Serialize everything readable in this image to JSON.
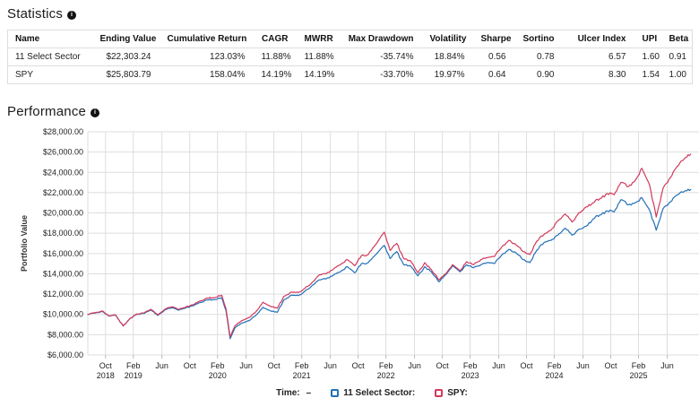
{
  "statistics": {
    "title": "Statistics",
    "columns": [
      "Name",
      "Ending Value",
      "Cumulative Return",
      "CAGR",
      "MWRR",
      "Max Drawdown",
      "Volatility",
      "Sharpe",
      "Sortino",
      "Ulcer Index",
      "UPI",
      "Beta"
    ],
    "rows": [
      [
        "11 Select Sector",
        "$22,303.24",
        "123.03%",
        "11.88%",
        "11.88%",
        "-35.74%",
        "18.84%",
        "0.56",
        "0.78",
        "6.57",
        "1.60",
        "0.91"
      ],
      [
        "SPY",
        "$25,803.79",
        "158.04%",
        "14.19%",
        "14.19%",
        "-33.70%",
        "19.97%",
        "0.64",
        "0.90",
        "8.30",
        "1.54",
        "1.00"
      ]
    ]
  },
  "performance": {
    "title": "Performance",
    "legend": {
      "time_label": "Time:",
      "time_value": "–",
      "items": [
        {
          "label": "11 Select Sector:"
        },
        {
          "label": "SPY:"
        }
      ]
    }
  },
  "chart_data": {
    "type": "line",
    "title": "Performance",
    "xlabel": "",
    "ylabel": "Portfolio Value",
    "ylim": [
      6000,
      28000
    ],
    "ytick_step": 2000,
    "ytick_prefix": "$",
    "xlim": [
      2018.54,
      2025.83
    ],
    "grid": true,
    "legend_position": "bottom",
    "grid_color": "#dddddd",
    "x_ticks": [
      {
        "t": 2018.75,
        "month": "Oct",
        "year": "2018"
      },
      {
        "t": 2019.08,
        "month": "Feb",
        "year": "2019"
      },
      {
        "t": 2019.42,
        "month": "Jun"
      },
      {
        "t": 2019.75,
        "month": "Oct"
      },
      {
        "t": 2020.08,
        "month": "Feb",
        "year": "2020"
      },
      {
        "t": 2020.42,
        "month": "Jun"
      },
      {
        "t": 2020.75,
        "month": "Oct"
      },
      {
        "t": 2021.08,
        "month": "Feb",
        "year": "2021"
      },
      {
        "t": 2021.42,
        "month": "Jun"
      },
      {
        "t": 2021.75,
        "month": "Oct"
      },
      {
        "t": 2022.08,
        "month": "Feb",
        "year": "2022"
      },
      {
        "t": 2022.42,
        "month": "Jun"
      },
      {
        "t": 2022.75,
        "month": "Oct"
      },
      {
        "t": 2023.08,
        "month": "Feb",
        "year": "2023"
      },
      {
        "t": 2023.42,
        "month": "Jun"
      },
      {
        "t": 2023.75,
        "month": "Oct"
      },
      {
        "t": 2024.08,
        "month": "Feb",
        "year": "2024"
      },
      {
        "t": 2024.42,
        "month": "Jun"
      },
      {
        "t": 2024.75,
        "month": "Oct"
      },
      {
        "t": 2025.08,
        "month": "Feb",
        "year": "2025"
      },
      {
        "t": 2025.42,
        "month": "Jun"
      }
    ],
    "series": [
      {
        "name": "11 Select Sector",
        "color": "#2170b8",
        "points": [
          [
            2018.54,
            10000
          ],
          [
            2018.62,
            10120
          ],
          [
            2018.71,
            10300
          ],
          [
            2018.79,
            9830
          ],
          [
            2018.87,
            9920
          ],
          [
            2018.96,
            8870
          ],
          [
            2019.04,
            9580
          ],
          [
            2019.12,
            10020
          ],
          [
            2019.21,
            10100
          ],
          [
            2019.29,
            10430
          ],
          [
            2019.37,
            9900
          ],
          [
            2019.46,
            10480
          ],
          [
            2019.54,
            10650
          ],
          [
            2019.62,
            10420
          ],
          [
            2019.71,
            10680
          ],
          [
            2019.79,
            10850
          ],
          [
            2019.87,
            11150
          ],
          [
            2019.96,
            11420
          ],
          [
            2020.04,
            11450
          ],
          [
            2020.13,
            11650
          ],
          [
            2020.18,
            10400
          ],
          [
            2020.23,
            7600
          ],
          [
            2020.29,
            8700
          ],
          [
            2020.37,
            9150
          ],
          [
            2020.46,
            9400
          ],
          [
            2020.54,
            9950
          ],
          [
            2020.62,
            10700
          ],
          [
            2020.71,
            10350
          ],
          [
            2020.79,
            10200
          ],
          [
            2020.87,
            11450
          ],
          [
            2020.96,
            11900
          ],
          [
            2021.04,
            11850
          ],
          [
            2021.12,
            12300
          ],
          [
            2021.21,
            12900
          ],
          [
            2021.29,
            13400
          ],
          [
            2021.37,
            13500
          ],
          [
            2021.46,
            13900
          ],
          [
            2021.54,
            14200
          ],
          [
            2021.62,
            14700
          ],
          [
            2021.71,
            14100
          ],
          [
            2021.79,
            15000
          ],
          [
            2021.87,
            15100
          ],
          [
            2021.96,
            15900
          ],
          [
            2022.06,
            16800
          ],
          [
            2022.13,
            15500
          ],
          [
            2022.21,
            16200
          ],
          [
            2022.29,
            14900
          ],
          [
            2022.37,
            14800
          ],
          [
            2022.46,
            13800
          ],
          [
            2022.54,
            14700
          ],
          [
            2022.62,
            14200
          ],
          [
            2022.71,
            13200
          ],
          [
            2022.79,
            13900
          ],
          [
            2022.87,
            14800
          ],
          [
            2022.96,
            14200
          ],
          [
            2023.04,
            14900
          ],
          [
            2023.12,
            14600
          ],
          [
            2023.21,
            14900
          ],
          [
            2023.29,
            15100
          ],
          [
            2023.37,
            15000
          ],
          [
            2023.46,
            15900
          ],
          [
            2023.54,
            16400
          ],
          [
            2023.62,
            16100
          ],
          [
            2023.71,
            15400
          ],
          [
            2023.79,
            15100
          ],
          [
            2023.87,
            16300
          ],
          [
            2023.96,
            17100
          ],
          [
            2024.04,
            17300
          ],
          [
            2024.12,
            17800
          ],
          [
            2024.21,
            18500
          ],
          [
            2024.29,
            17800
          ],
          [
            2024.37,
            18400
          ],
          [
            2024.46,
            18700
          ],
          [
            2024.54,
            19400
          ],
          [
            2024.62,
            19800
          ],
          [
            2024.71,
            20200
          ],
          [
            2024.79,
            20100
          ],
          [
            2024.87,
            21300
          ],
          [
            2024.96,
            20800
          ],
          [
            2025.04,
            21000
          ],
          [
            2025.12,
            21500
          ],
          [
            2025.21,
            20300
          ],
          [
            2025.29,
            18300
          ],
          [
            2025.37,
            20400
          ],
          [
            2025.46,
            21100
          ],
          [
            2025.54,
            21800
          ],
          [
            2025.62,
            22100
          ],
          [
            2025.7,
            22303.24
          ]
        ]
      },
      {
        "name": "SPY",
        "color": "#d13a5c",
        "points": [
          [
            2018.54,
            10000
          ],
          [
            2018.62,
            10150
          ],
          [
            2018.71,
            10350
          ],
          [
            2018.79,
            9850
          ],
          [
            2018.87,
            9950
          ],
          [
            2018.96,
            8850
          ],
          [
            2019.04,
            9600
          ],
          [
            2019.12,
            10050
          ],
          [
            2019.21,
            10150
          ],
          [
            2019.29,
            10500
          ],
          [
            2019.37,
            9950
          ],
          [
            2019.46,
            10550
          ],
          [
            2019.54,
            10750
          ],
          [
            2019.62,
            10500
          ],
          [
            2019.71,
            10750
          ],
          [
            2019.79,
            10950
          ],
          [
            2019.87,
            11300
          ],
          [
            2019.96,
            11600
          ],
          [
            2020.04,
            11650
          ],
          [
            2020.13,
            11900
          ],
          [
            2020.18,
            10600
          ],
          [
            2020.23,
            7800
          ],
          [
            2020.29,
            8900
          ],
          [
            2020.37,
            9400
          ],
          [
            2020.46,
            9700
          ],
          [
            2020.54,
            10300
          ],
          [
            2020.62,
            11200
          ],
          [
            2020.71,
            10800
          ],
          [
            2020.79,
            10600
          ],
          [
            2020.87,
            11800
          ],
          [
            2020.96,
            12200
          ],
          [
            2021.04,
            12150
          ],
          [
            2021.12,
            12600
          ],
          [
            2021.21,
            13200
          ],
          [
            2021.29,
            13900
          ],
          [
            2021.37,
            14000
          ],
          [
            2021.46,
            14500
          ],
          [
            2021.54,
            14900
          ],
          [
            2021.62,
            15400
          ],
          [
            2021.71,
            14800
          ],
          [
            2021.79,
            15800
          ],
          [
            2021.87,
            15900
          ],
          [
            2021.96,
            16900
          ],
          [
            2022.06,
            18100
          ],
          [
            2022.13,
            16300
          ],
          [
            2022.21,
            17000
          ],
          [
            2022.29,
            15500
          ],
          [
            2022.37,
            15300
          ],
          [
            2022.46,
            14100
          ],
          [
            2022.54,
            15100
          ],
          [
            2022.62,
            14400
          ],
          [
            2022.71,
            13400
          ],
          [
            2022.79,
            14000
          ],
          [
            2022.87,
            14900
          ],
          [
            2022.96,
            14300
          ],
          [
            2023.04,
            15200
          ],
          [
            2023.12,
            14900
          ],
          [
            2023.21,
            15400
          ],
          [
            2023.29,
            15600
          ],
          [
            2023.37,
            15700
          ],
          [
            2023.46,
            16700
          ],
          [
            2023.54,
            17300
          ],
          [
            2023.62,
            16900
          ],
          [
            2023.71,
            16200
          ],
          [
            2023.79,
            15900
          ],
          [
            2023.87,
            17200
          ],
          [
            2023.96,
            17900
          ],
          [
            2024.04,
            18300
          ],
          [
            2024.12,
            19200
          ],
          [
            2024.21,
            19900
          ],
          [
            2024.29,
            19100
          ],
          [
            2024.37,
            20000
          ],
          [
            2024.46,
            20600
          ],
          [
            2024.54,
            21000
          ],
          [
            2024.62,
            21400
          ],
          [
            2024.71,
            21900
          ],
          [
            2024.79,
            21800
          ],
          [
            2024.87,
            23000
          ],
          [
            2024.96,
            22600
          ],
          [
            2025.04,
            23200
          ],
          [
            2025.12,
            24400
          ],
          [
            2025.21,
            22800
          ],
          [
            2025.29,
            19600
          ],
          [
            2025.37,
            22400
          ],
          [
            2025.46,
            23500
          ],
          [
            2025.54,
            24600
          ],
          [
            2025.62,
            25300
          ],
          [
            2025.7,
            25803.79
          ]
        ]
      }
    ]
  }
}
